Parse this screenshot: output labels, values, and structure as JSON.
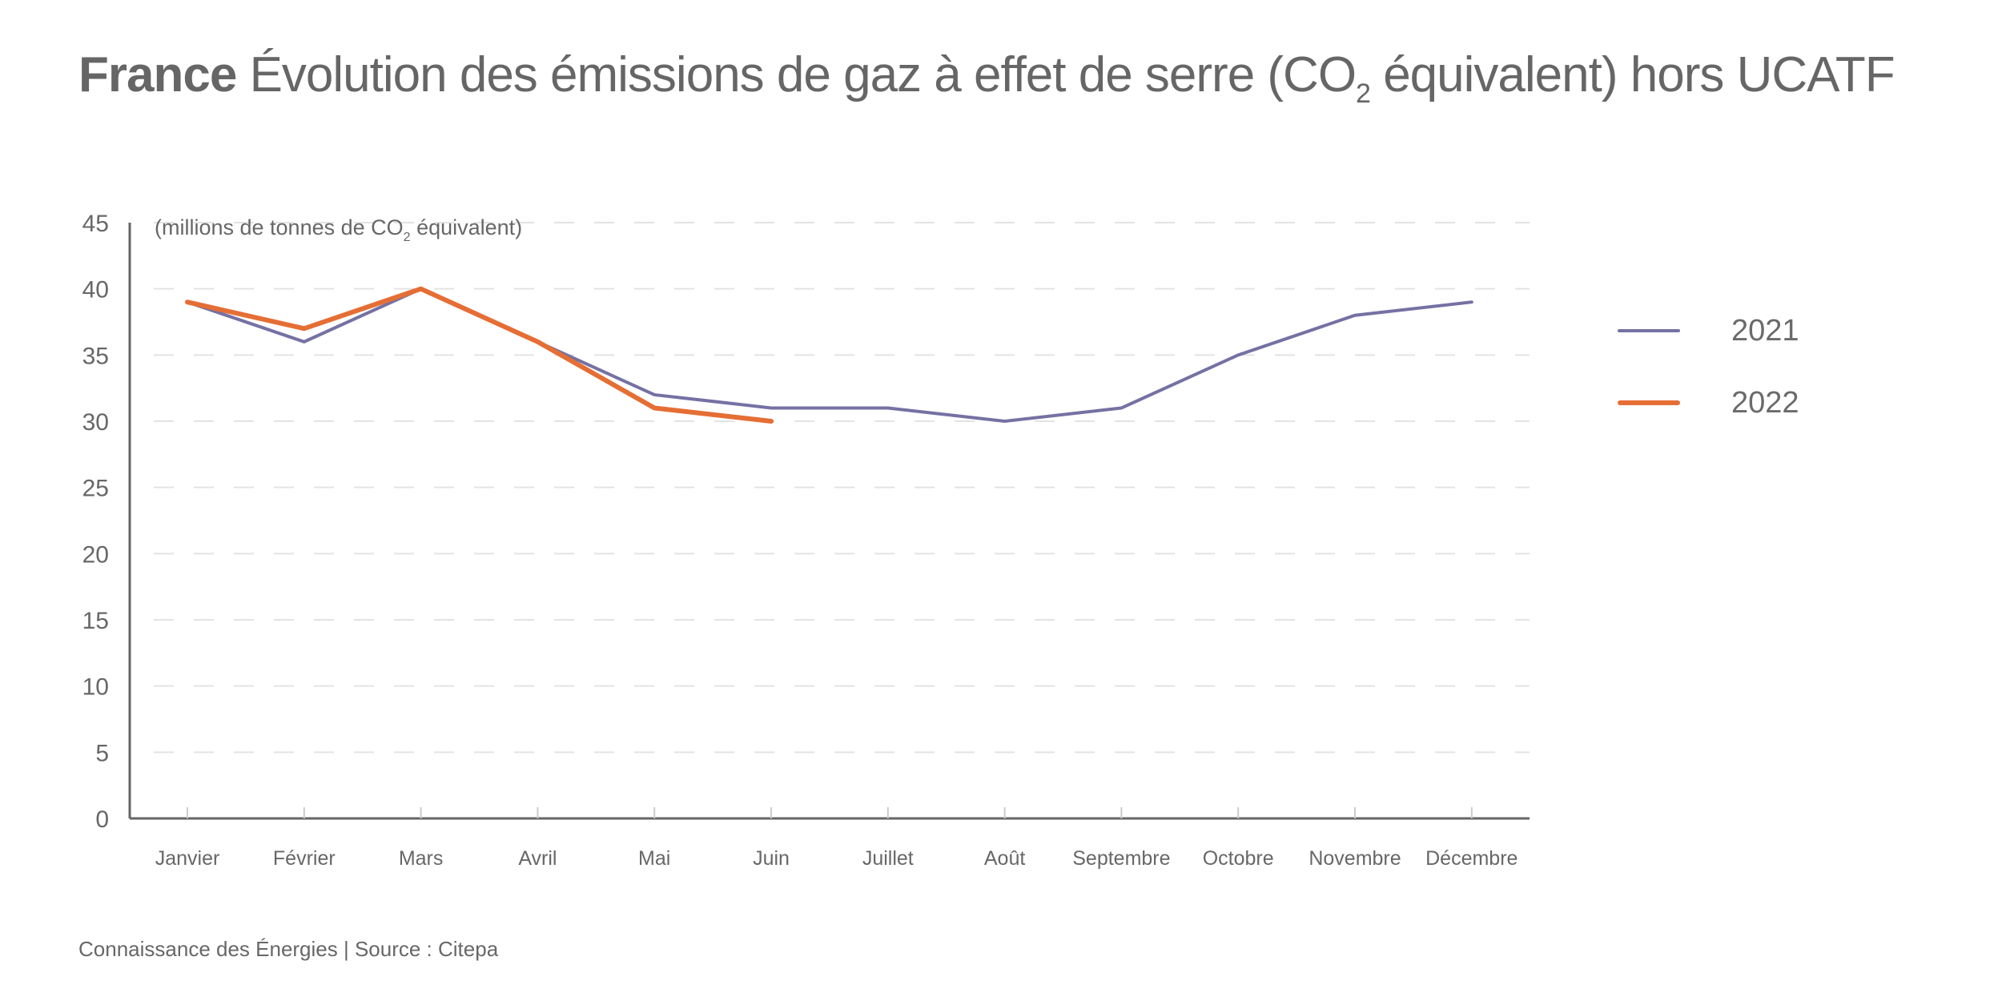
{
  "title": {
    "country": "France",
    "text_before_sub": "Évolution des émissions de gaz à effet de serre (CO",
    "sub": "2",
    "text_after_sub": " équivalent) hors UCATF"
  },
  "unit_label": {
    "before": "(millions de tonnes de CO",
    "sub": "2",
    "after": " équivalent)"
  },
  "footer": "Connaissance des Énergies | Source : Citepa",
  "chart_data": {
    "type": "line",
    "title": "France Évolution des émissions de gaz à effet de serre (CO2 équivalent) hors UCATF",
    "xlabel": "",
    "ylabel": "(millions de tonnes de CO2 équivalent)",
    "categories": [
      "Janvier",
      "Février",
      "Mars",
      "Avril",
      "Mai",
      "Juin",
      "Juillet",
      "Août",
      "Septembre",
      "Octobre",
      "Novembre",
      "Décembre"
    ],
    "ylim": [
      0,
      45
    ],
    "yticks": [
      0,
      5,
      10,
      15,
      20,
      25,
      30,
      35,
      40,
      45
    ],
    "grid": "horizontal-dashed",
    "legend_position": "right",
    "series": [
      {
        "name": "2021",
        "color": "#7471a3",
        "values": [
          39,
          36,
          40,
          36,
          32,
          31,
          31,
          30,
          31,
          35,
          38,
          39
        ]
      },
      {
        "name": "2022",
        "color": "#e56e35",
        "values": [
          39,
          37,
          40,
          36,
          31,
          30
        ]
      }
    ]
  }
}
